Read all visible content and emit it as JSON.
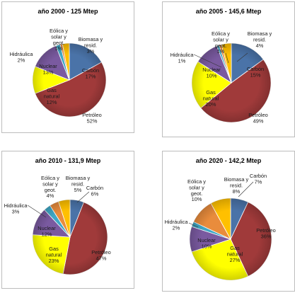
{
  "chart_data": [
    {
      "type": "pie",
      "title": "año 2000 - 125 Mtep",
      "slices": [
        {
          "label": "Carbón",
          "value": 17,
          "pct": "17%",
          "color": "#4a73a8"
        },
        {
          "label": "Petróleo",
          "value": 52,
          "pct": "52%",
          "color": "#a03a3a"
        },
        {
          "label": "Gas natural",
          "value": 12,
          "pct": "12%",
          "color": "#ffff00"
        },
        {
          "label": "Nuclear",
          "value": 13,
          "pct": "13%",
          "color": "#7a5aa0"
        },
        {
          "label": "Hidráulica",
          "value": 2,
          "pct": "2%",
          "color": "#3fa8c6"
        },
        {
          "label": "Eólica y solar y geot.",
          "value": 1,
          "pct": "1%",
          "color": "#e98c3c"
        },
        {
          "label": "Biomasa y resid.",
          "value": 3,
          "pct": "3%",
          "color": "#ffc000"
        }
      ]
    },
    {
      "type": "pie",
      "title": "año 2005 - 145,6 Mtep",
      "slices": [
        {
          "label": "Carbón",
          "value": 15,
          "pct": "15%",
          "color": "#4a73a8"
        },
        {
          "label": "Petróleo",
          "value": 49,
          "pct": "49%",
          "color": "#a03a3a"
        },
        {
          "label": "Gas natural",
          "value": 20,
          "pct": "20%",
          "color": "#ffff00"
        },
        {
          "label": "Nuclear",
          "value": 10,
          "pct": "10%",
          "color": "#7a5aa0"
        },
        {
          "label": "Hidráulica",
          "value": 1,
          "pct": "1%",
          "color": "#3fa8c6"
        },
        {
          "label": "Eólica y solar y geot.",
          "value": 1,
          "pct": "1%",
          "color": "#e98c3c"
        },
        {
          "label": "Biomasa y resid.",
          "value": 4,
          "pct": "4%",
          "color": "#ffc000"
        }
      ]
    },
    {
      "type": "pie",
      "title": "año 2010 - 131,9 Mtep",
      "slices": [
        {
          "label": "Carbón",
          "value": 6,
          "pct": "6%",
          "color": "#4a73a8"
        },
        {
          "label": "Petróleo",
          "value": 47,
          "pct": "47%",
          "color": "#a03a3a"
        },
        {
          "label": "Gas natural",
          "value": 23,
          "pct": "23%",
          "color": "#ffff00"
        },
        {
          "label": "Nuclear",
          "value": 12,
          "pct": "12%",
          "color": "#7a5aa0"
        },
        {
          "label": "Hidráulica",
          "value": 3,
          "pct": "3%",
          "color": "#3fa8c6"
        },
        {
          "label": "Eólica y solar y geot.",
          "value": 4,
          "pct": "4%",
          "color": "#e98c3c"
        },
        {
          "label": "Biomasa y resid.",
          "value": 5,
          "pct": "5%",
          "color": "#ffc000"
        }
      ]
    },
    {
      "type": "pie",
      "title": "año 2020 - 142,2 Mtep",
      "slices": [
        {
          "label": "Carbón",
          "value": 7,
          "pct": "7%",
          "color": "#4a73a8"
        },
        {
          "label": "Petróleo",
          "value": 36,
          "pct": "36%",
          "color": "#a03a3a"
        },
        {
          "label": "Gas natural",
          "value": 27,
          "pct": "27%",
          "color": "#ffff00"
        },
        {
          "label": "Nuclear",
          "value": 10,
          "pct": "10%",
          "color": "#7a5aa0"
        },
        {
          "label": "Hidráulica",
          "value": 2,
          "pct": "2%",
          "color": "#3fa8c6"
        },
        {
          "label": "Eólica y solar y geot.",
          "value": 10,
          "pct": "10%",
          "color": "#e98c3c"
        },
        {
          "label": "Biomasa y resid.",
          "value": 8,
          "pct": "8%",
          "color": "#ffc000"
        }
      ]
    }
  ]
}
